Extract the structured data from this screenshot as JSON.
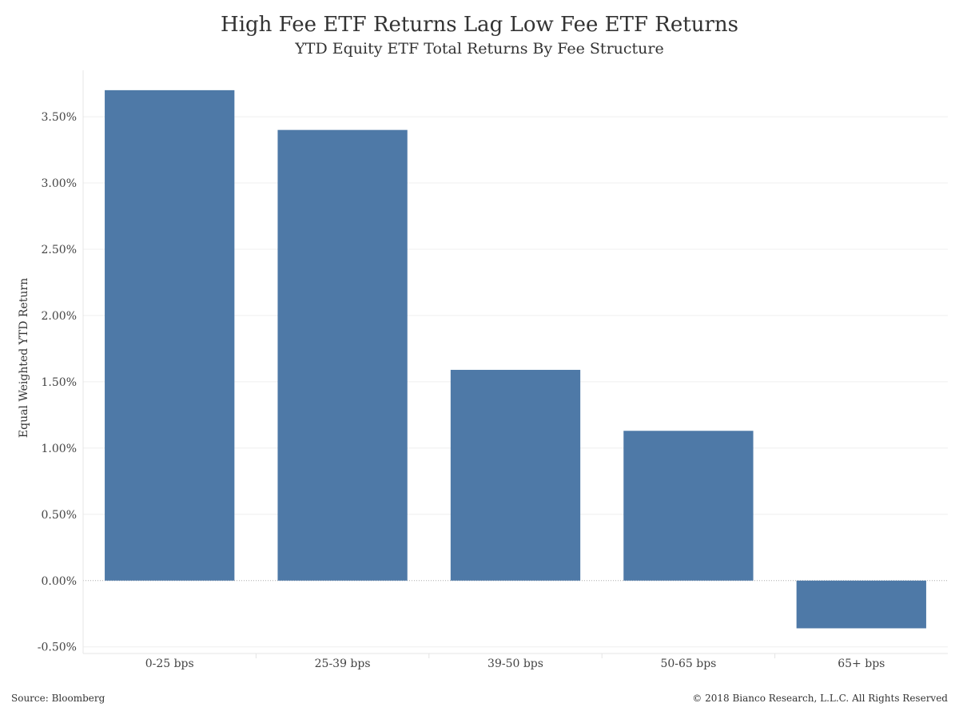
{
  "chart_data": {
    "type": "bar",
    "title": "High Fee ETF Returns Lag Low Fee ETF Returns",
    "subtitle": "YTD Equity ETF Total Returns By Fee Structure",
    "xlabel": "",
    "ylabel": "Equal Weighted YTD Return",
    "categories": [
      "0-25 bps",
      "25-39 bps",
      "39-50 bps",
      "50-65 bps",
      "65+ bps"
    ],
    "values": [
      3.7,
      3.4,
      1.59,
      1.13,
      -0.36
    ],
    "value_unit": "%",
    "ylim": [
      -0.55,
      3.85
    ],
    "y_ticks": [
      -0.5,
      0.0,
      0.5,
      1.0,
      1.5,
      2.0,
      2.5,
      3.0,
      3.5
    ],
    "y_tick_labels": [
      "-0.50%",
      "0.00%",
      "0.50%",
      "1.00%",
      "1.50%",
      "2.00%",
      "2.50%",
      "3.00%",
      "3.50%"
    ],
    "grid": true,
    "legend": "none",
    "bar_color": "#4e79a7"
  },
  "footer": {
    "source": "Source: Bloomberg",
    "copyright": "© 2018 Bianco Research, L.L.C. All Rights Reserved"
  }
}
